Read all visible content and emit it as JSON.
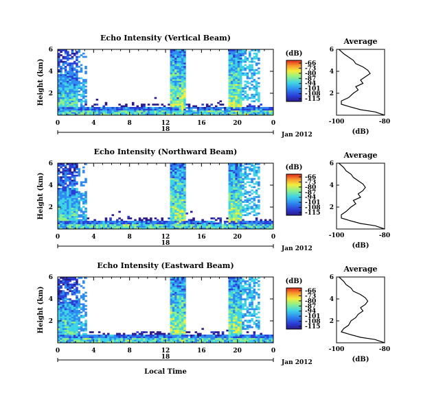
{
  "chart_data": [
    {
      "type": "heatmap",
      "title": "Echo Intensity (Vertical Beam)",
      "ylabel": "Height (km)",
      "xticks": [
        "0",
        "4",
        "8",
        "12",
        "16",
        "20",
        "0"
      ],
      "yticks": [
        "2",
        "4",
        "6"
      ],
      "date_day": "18",
      "date_label": "Jan 2012",
      "xlim_hours": [
        0,
        24
      ],
      "ylim_km": [
        0,
        6
      ],
      "cbar_unit": "(dB)",
      "cbar_ticks": [
        "-66",
        "-73",
        "-80",
        "-87",
        "-94",
        "-101",
        "-108",
        "-115"
      ],
      "rain_bands_hours": [
        [
          13.0,
          13.6
        ],
        [
          19.3,
          20.0
        ]
      ],
      "profile": {
        "title": "Average",
        "xlabel": "(dB)",
        "xticks": [
          "-100",
          "-80"
        ],
        "yticks": [
          "2",
          "4",
          "6"
        ],
        "xlim": [
          -100,
          -80
        ],
        "ylim": [
          0,
          6
        ],
        "x": [
          -80,
          -84,
          -90,
          -95,
          -98,
          -98,
          -95,
          -93,
          -91,
          -92,
          -89,
          -90,
          -88,
          -86,
          -87,
          -89,
          -92,
          -93,
          -95,
          -97,
          -98,
          -99
        ],
        "y": [
          0.0,
          0.3,
          0.5,
          0.8,
          1.0,
          1.3,
          1.6,
          2.0,
          2.3,
          2.6,
          2.9,
          3.2,
          3.5,
          3.8,
          4.1,
          4.4,
          4.7,
          5.0,
          5.3,
          5.6,
          5.8,
          6.0
        ]
      }
    },
    {
      "type": "heatmap",
      "title": "Echo Intensity (Northward Beam)",
      "ylabel": "Height (km)",
      "xticks": [
        "0",
        "4",
        "8",
        "12",
        "16",
        "20",
        "0"
      ],
      "yticks": [
        "2",
        "4",
        "6"
      ],
      "date_day": "18",
      "date_label": "Jan 2012",
      "xlim_hours": [
        0,
        24
      ],
      "ylim_km": [
        0,
        6
      ],
      "cbar_unit": "(dB)",
      "cbar_ticks": [
        "-66",
        "-73",
        "-80",
        "-87",
        "-94",
        "-101",
        "-108",
        "-115"
      ],
      "rain_bands_hours": [
        [
          13.0,
          13.6
        ],
        [
          19.3,
          20.0
        ]
      ],
      "profile": {
        "title": "Average",
        "xlabel": "(dB)",
        "xticks": [
          "-100",
          "-80"
        ],
        "yticks": [
          "2",
          "4",
          "6"
        ],
        "xlim": [
          -100,
          -80
        ],
        "ylim": [
          0,
          6
        ],
        "x": [
          -80,
          -84,
          -90,
          -95,
          -98,
          -98,
          -96,
          -94,
          -92,
          -93,
          -90,
          -91,
          -89,
          -88,
          -89,
          -91,
          -93,
          -94,
          -96,
          -97,
          -98,
          -99
        ],
        "y": [
          0.0,
          0.3,
          0.5,
          0.8,
          1.0,
          1.3,
          1.6,
          2.0,
          2.3,
          2.6,
          2.9,
          3.2,
          3.5,
          3.8,
          4.1,
          4.4,
          4.7,
          5.0,
          5.3,
          5.6,
          5.8,
          6.0
        ]
      }
    },
    {
      "type": "heatmap",
      "title": "Echo Intensity (Eastward Beam)",
      "ylabel": "Height (km)",
      "xticks": [
        "0",
        "4",
        "8",
        "12",
        "16",
        "20",
        "0"
      ],
      "yticks": [
        "2",
        "4",
        "6"
      ],
      "date_day": "18",
      "date_label": "Jan 2012",
      "xlim_hours": [
        0,
        24
      ],
      "ylim_km": [
        0,
        6
      ],
      "cbar_unit": "(dB)",
      "cbar_ticks": [
        "-66",
        "-73",
        "-80",
        "-87",
        "-94",
        "-101",
        "-108",
        "-115"
      ],
      "rain_bands_hours": [
        [
          13.0,
          13.6
        ],
        [
          19.3,
          20.0
        ]
      ],
      "xlabel": "Local Time",
      "profile": {
        "title": "Average",
        "xlabel": "(dB)",
        "xticks": [
          "-100",
          "-80"
        ],
        "yticks": [
          "2",
          "4",
          "6"
        ],
        "xlim": [
          -100,
          -80
        ],
        "ylim": [
          0,
          6
        ],
        "x": [
          -80,
          -84,
          -90,
          -95,
          -98,
          -97,
          -95,
          -94,
          -92,
          -91,
          -89,
          -90,
          -88,
          -87,
          -88,
          -90,
          -93,
          -94,
          -96,
          -97,
          -98,
          -99
        ],
        "y": [
          0.0,
          0.3,
          0.5,
          0.8,
          1.0,
          1.3,
          1.6,
          2.0,
          2.3,
          2.6,
          2.9,
          3.2,
          3.5,
          3.8,
          4.1,
          4.4,
          4.7,
          5.0,
          5.3,
          5.6,
          5.8,
          6.0
        ]
      }
    }
  ]
}
